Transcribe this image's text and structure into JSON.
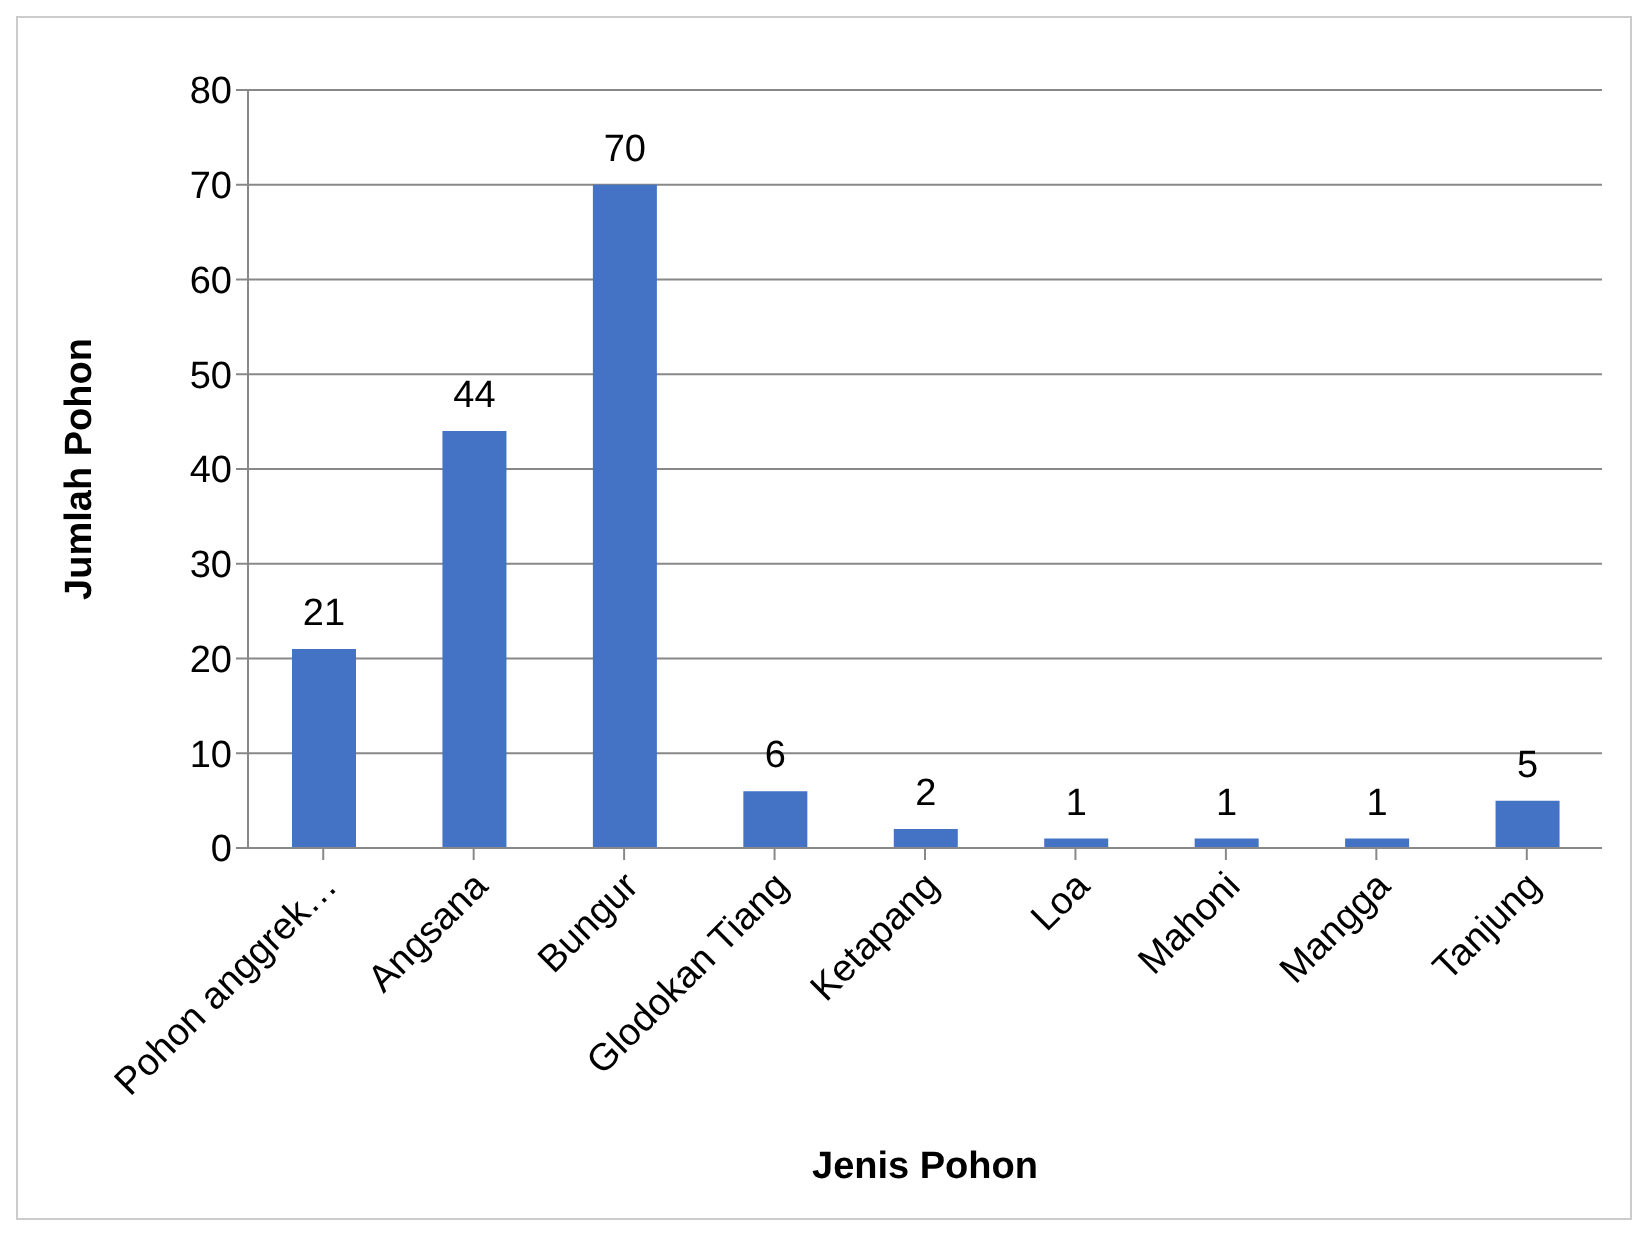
{
  "chart_data": {
    "type": "bar",
    "xlabel": "Jenis Pohon",
    "ylabel": "Jumlah Pohon",
    "categories": [
      "Pohon anggrek…",
      "Angsana",
      "Bungur",
      "Glodokan Tiang",
      "Ketapang",
      "Loa",
      "Mahoni",
      "Mangga",
      "Tanjung"
    ],
    "values": [
      21,
      44,
      70,
      6,
      2,
      1,
      1,
      1,
      5
    ],
    "color": "#4472c4",
    "ylim": [
      0,
      80
    ],
    "yticks": [
      0,
      10,
      20,
      30,
      40,
      50,
      60,
      70,
      80
    ],
    "grid": "y",
    "data_labels": true
  }
}
